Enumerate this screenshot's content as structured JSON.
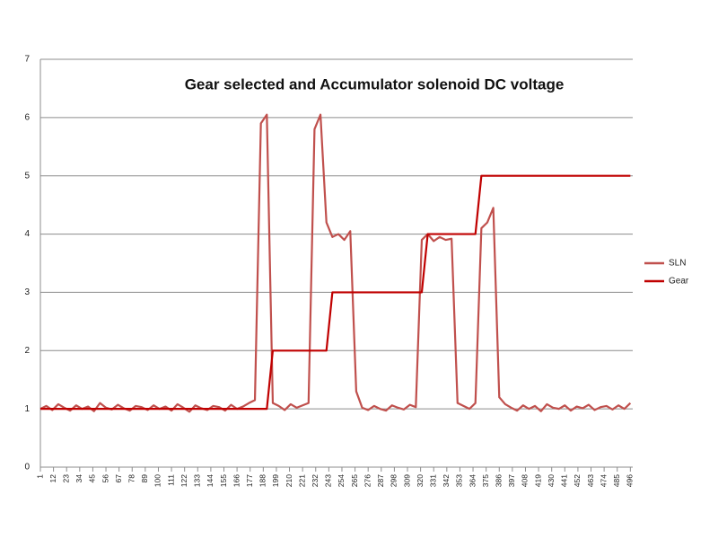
{
  "chart_data": {
    "type": "line",
    "title": "Gear selected and Accumulator solenoid DC voltage",
    "x": [
      1,
      6,
      11,
      16,
      21,
      26,
      31,
      36,
      41,
      46,
      51,
      56,
      61,
      66,
      71,
      76,
      81,
      86,
      91,
      96,
      101,
      106,
      111,
      116,
      121,
      126,
      131,
      136,
      141,
      146,
      151,
      156,
      161,
      166,
      171,
      176,
      181,
      186,
      191,
      196,
      201,
      206,
      211,
      216,
      221,
      226,
      231,
      236,
      241,
      246,
      251,
      256,
      261,
      266,
      271,
      276,
      281,
      286,
      291,
      296,
      301,
      306,
      311,
      316,
      321,
      326,
      331,
      336,
      341,
      346,
      351,
      356,
      361,
      366,
      371,
      376,
      381,
      386,
      391,
      396,
      401,
      406,
      411,
      416,
      421,
      426,
      431,
      436,
      441,
      446,
      451,
      456,
      461,
      466,
      471,
      476,
      481,
      486,
      491,
      496
    ],
    "series": [
      {
        "name": "SLN",
        "color": "#c0504d",
        "values": [
          1.0,
          1.05,
          0.98,
          1.08,
          1.02,
          0.97,
          1.06,
          1.0,
          1.04,
          0.96,
          1.1,
          1.02,
          0.99,
          1.07,
          1.01,
          0.97,
          1.05,
          1.03,
          0.98,
          1.06,
          1.0,
          1.04,
          0.97,
          1.08,
          1.02,
          0.95,
          1.06,
          1.01,
          0.98,
          1.05,
          1.03,
          0.97,
          1.07,
          1.0,
          1.04,
          1.1,
          1.15,
          5.9,
          6.05,
          1.1,
          1.05,
          0.98,
          1.08,
          1.02,
          1.06,
          1.1,
          5.8,
          6.05,
          4.2,
          3.95,
          4.0,
          3.9,
          4.05,
          1.3,
          1.02,
          0.98,
          1.05,
          1.0,
          0.97,
          1.06,
          1.02,
          0.99,
          1.07,
          1.03,
          3.9,
          4.0,
          3.88,
          3.95,
          3.9,
          3.92,
          1.1,
          1.05,
          1.0,
          1.1,
          4.1,
          4.2,
          4.45,
          1.2,
          1.08,
          1.02,
          0.97,
          1.06,
          1.0,
          1.05,
          0.96,
          1.08,
          1.02,
          1.0,
          1.06,
          0.97,
          1.04,
          1.01,
          1.07,
          0.98,
          1.03,
          1.05,
          0.99,
          1.06,
          1.0,
          1.1
        ]
      },
      {
        "name": "Gear",
        "color": "#c00000",
        "values": [
          1,
          1,
          1,
          1,
          1,
          1,
          1,
          1,
          1,
          1,
          1,
          1,
          1,
          1,
          1,
          1,
          1,
          1,
          1,
          1,
          1,
          1,
          1,
          1,
          1,
          1,
          1,
          1,
          1,
          1,
          1,
          1,
          1,
          1,
          1,
          1,
          1,
          1,
          1,
          2,
          2,
          2,
          2,
          2,
          2,
          2,
          2,
          2,
          2,
          3,
          3,
          3,
          3,
          3,
          3,
          3,
          3,
          3,
          3,
          3,
          3,
          3,
          3,
          3,
          3,
          4,
          4,
          4,
          4,
          4,
          4,
          4,
          4,
          4,
          5,
          5,
          5,
          5,
          5,
          5,
          5,
          5,
          5,
          5,
          5,
          5,
          5,
          5,
          5,
          5,
          5,
          5,
          5,
          5,
          5,
          5,
          5,
          5,
          5,
          5
        ]
      }
    ],
    "xlim": [
      1,
      498
    ],
    "xticks": [
      1,
      12,
      23,
      34,
      45,
      56,
      67,
      78,
      89,
      100,
      111,
      122,
      133,
      144,
      155,
      166,
      177,
      188,
      199,
      210,
      221,
      232,
      243,
      254,
      265,
      276,
      287,
      298,
      309,
      320,
      331,
      342,
      353,
      364,
      375,
      386,
      397,
      408,
      419,
      430,
      441,
      452,
      463,
      474,
      485,
      496
    ],
    "ylim": [
      0,
      7
    ],
    "yticks": [
      0,
      1,
      2,
      3,
      4,
      5,
      6,
      7
    ],
    "grid": true,
    "legend": "right"
  }
}
